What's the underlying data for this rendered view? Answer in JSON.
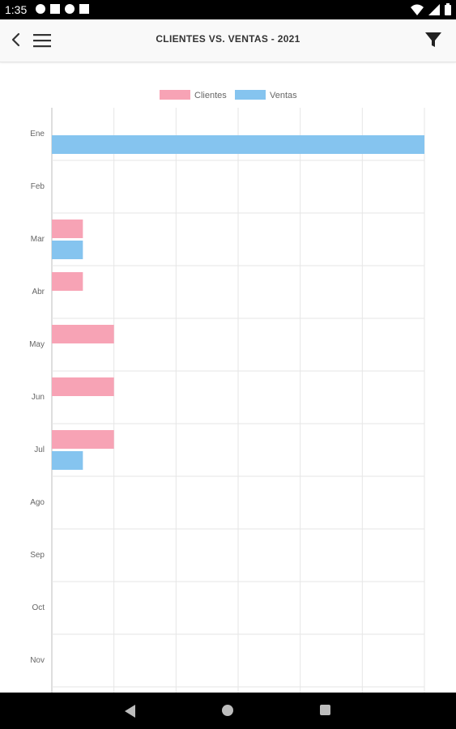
{
  "status_bar": {
    "time": "1:35"
  },
  "app_bar": {
    "title": "CLIENTES VS. VENTAS - 2021",
    "back_icon": "chevron-left-icon",
    "menu_icon": "hamburger-menu-icon",
    "filter_icon": "filter-funnel-icon"
  },
  "colors": {
    "clientes": "#f7a3b5",
    "ventas": "#85c4ef",
    "grid": "#e6e6e6",
    "axis": "#bdbdbd"
  },
  "chart_data": {
    "type": "bar",
    "orientation": "horizontal",
    "categories": [
      "Ene",
      "Feb",
      "Mar",
      "Abr",
      "May",
      "Jun",
      "Jul",
      "Ago",
      "Sep",
      "Oct",
      "Nov"
    ],
    "series": [
      {
        "name": "Clientes",
        "values": [
          0,
          0,
          0.5,
          0.5,
          1,
          1,
          1,
          0,
          0,
          0,
          0
        ]
      },
      {
        "name": "Ventas",
        "values": [
          6,
          0,
          0.5,
          0,
          0,
          0,
          0.5,
          0,
          0,
          0,
          0
        ]
      }
    ],
    "xlim": [
      0,
      6
    ],
    "legend_position": "top",
    "grid": true
  }
}
